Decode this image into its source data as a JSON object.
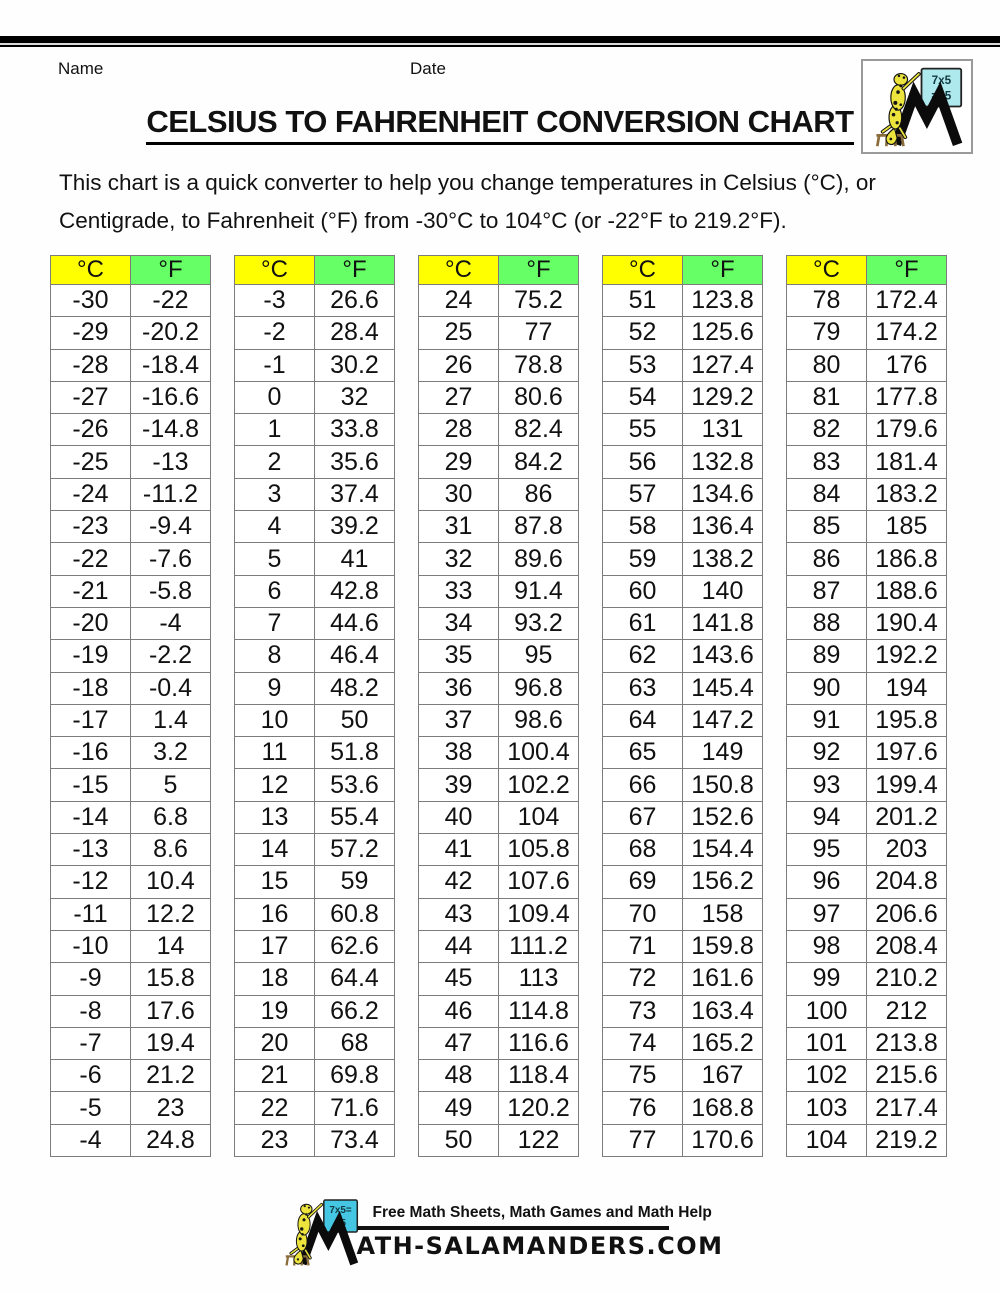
{
  "header": {
    "name_label": "Name",
    "date_label": "Date",
    "title": "CELSIUS TO FAHRENHEIT CONVERSION CHART",
    "intro_line1": "This chart is a quick converter to help you change temperatures in Celsius (°C), or",
    "intro_line2": "Centigrade, to Fahrenheit (°F) from -30°C to 104°C (or -22°F to 219.2°F)."
  },
  "logo": {
    "board_line1": "7x5",
    "board_line2": "=35"
  },
  "colors": {
    "header_yellow": "#ffff00",
    "header_green": "#66ff66",
    "cell_border_gray": "#7c7c7c",
    "logo_board_cyan": "#aee9ee",
    "footer_board_cyan": "#45c7e4",
    "salamander_yellow": "#ece43c"
  },
  "table": {
    "c_header": "°C",
    "f_header": "°F",
    "groups": [
      {
        "rows": [
          [
            "-30",
            "-22"
          ],
          [
            "-29",
            "-20.2"
          ],
          [
            "-28",
            "-18.4"
          ],
          [
            "-27",
            "-16.6"
          ],
          [
            "-26",
            "-14.8"
          ],
          [
            "-25",
            "-13"
          ],
          [
            "-24",
            "-11.2"
          ],
          [
            "-23",
            "-9.4"
          ],
          [
            "-22",
            "-7.6"
          ],
          [
            "-21",
            "-5.8"
          ],
          [
            "-20",
            "-4"
          ],
          [
            "-19",
            "-2.2"
          ],
          [
            "-18",
            "-0.4"
          ],
          [
            "-17",
            "1.4"
          ],
          [
            "-16",
            "3.2"
          ],
          [
            "-15",
            "5"
          ],
          [
            "-14",
            "6.8"
          ],
          [
            "-13",
            "8.6"
          ],
          [
            "-12",
            "10.4"
          ],
          [
            "-11",
            "12.2"
          ],
          [
            "-10",
            "14"
          ],
          [
            "-9",
            "15.8"
          ],
          [
            "-8",
            "17.6"
          ],
          [
            "-7",
            "19.4"
          ],
          [
            "-6",
            "21.2"
          ],
          [
            "-5",
            "23"
          ],
          [
            "-4",
            "24.8"
          ]
        ]
      },
      {
        "rows": [
          [
            "-3",
            "26.6"
          ],
          [
            "-2",
            "28.4"
          ],
          [
            "-1",
            "30.2"
          ],
          [
            "0",
            "32"
          ],
          [
            "1",
            "33.8"
          ],
          [
            "2",
            "35.6"
          ],
          [
            "3",
            "37.4"
          ],
          [
            "4",
            "39.2"
          ],
          [
            "5",
            "41"
          ],
          [
            "6",
            "42.8"
          ],
          [
            "7",
            "44.6"
          ],
          [
            "8",
            "46.4"
          ],
          [
            "9",
            "48.2"
          ],
          [
            "10",
            "50"
          ],
          [
            "11",
            "51.8"
          ],
          [
            "12",
            "53.6"
          ],
          [
            "13",
            "55.4"
          ],
          [
            "14",
            "57.2"
          ],
          [
            "15",
            "59"
          ],
          [
            "16",
            "60.8"
          ],
          [
            "17",
            "62.6"
          ],
          [
            "18",
            "64.4"
          ],
          [
            "19",
            "66.2"
          ],
          [
            "20",
            "68"
          ],
          [
            "21",
            "69.8"
          ],
          [
            "22",
            "71.6"
          ],
          [
            "23",
            "73.4"
          ]
        ]
      },
      {
        "rows": [
          [
            "24",
            "75.2"
          ],
          [
            "25",
            "77"
          ],
          [
            "26",
            "78.8"
          ],
          [
            "27",
            "80.6"
          ],
          [
            "28",
            "82.4"
          ],
          [
            "29",
            "84.2"
          ],
          [
            "30",
            "86"
          ],
          [
            "31",
            "87.8"
          ],
          [
            "32",
            "89.6"
          ],
          [
            "33",
            "91.4"
          ],
          [
            "34",
            "93.2"
          ],
          [
            "35",
            "95"
          ],
          [
            "36",
            "96.8"
          ],
          [
            "37",
            "98.6"
          ],
          [
            "38",
            "100.4"
          ],
          [
            "39",
            "102.2"
          ],
          [
            "40",
            "104"
          ],
          [
            "41",
            "105.8"
          ],
          [
            "42",
            "107.6"
          ],
          [
            "43",
            "109.4"
          ],
          [
            "44",
            "111.2"
          ],
          [
            "45",
            "113"
          ],
          [
            "46",
            "114.8"
          ],
          [
            "47",
            "116.6"
          ],
          [
            "48",
            "118.4"
          ],
          [
            "49",
            "120.2"
          ],
          [
            "50",
            "122"
          ]
        ]
      },
      {
        "rows": [
          [
            "51",
            "123.8"
          ],
          [
            "52",
            "125.6"
          ],
          [
            "53",
            "127.4"
          ],
          [
            "54",
            "129.2"
          ],
          [
            "55",
            "131"
          ],
          [
            "56",
            "132.8"
          ],
          [
            "57",
            "134.6"
          ],
          [
            "58",
            "136.4"
          ],
          [
            "59",
            "138.2"
          ],
          [
            "60",
            "140"
          ],
          [
            "61",
            "141.8"
          ],
          [
            "62",
            "143.6"
          ],
          [
            "63",
            "145.4"
          ],
          [
            "64",
            "147.2"
          ],
          [
            "65",
            "149"
          ],
          [
            "66",
            "150.8"
          ],
          [
            "67",
            "152.6"
          ],
          [
            "68",
            "154.4"
          ],
          [
            "69",
            "156.2"
          ],
          [
            "70",
            "158"
          ],
          [
            "71",
            "159.8"
          ],
          [
            "72",
            "161.6"
          ],
          [
            "73",
            "163.4"
          ],
          [
            "74",
            "165.2"
          ],
          [
            "75",
            "167"
          ],
          [
            "76",
            "168.8"
          ],
          [
            "77",
            "170.6"
          ]
        ]
      },
      {
        "rows": [
          [
            "78",
            "172.4"
          ],
          [
            "79",
            "174.2"
          ],
          [
            "80",
            "176"
          ],
          [
            "81",
            "177.8"
          ],
          [
            "82",
            "179.6"
          ],
          [
            "83",
            "181.4"
          ],
          [
            "84",
            "183.2"
          ],
          [
            "85",
            "185"
          ],
          [
            "86",
            "186.8"
          ],
          [
            "87",
            "188.6"
          ],
          [
            "88",
            "190.4"
          ],
          [
            "89",
            "192.2"
          ],
          [
            "90",
            "194"
          ],
          [
            "91",
            "195.8"
          ],
          [
            "92",
            "197.6"
          ],
          [
            "93",
            "199.4"
          ],
          [
            "94",
            "201.2"
          ],
          [
            "95",
            "203"
          ],
          [
            "96",
            "204.8"
          ],
          [
            "97",
            "206.6"
          ],
          [
            "98",
            "208.4"
          ],
          [
            "99",
            "210.2"
          ],
          [
            "100",
            "212"
          ],
          [
            "101",
            "213.8"
          ],
          [
            "102",
            "215.6"
          ],
          [
            "103",
            "217.4"
          ],
          [
            "104",
            "219.2"
          ]
        ]
      }
    ]
  },
  "footer": {
    "board_line1": "7x5=",
    "board_line2": "35",
    "tagline": "Free Math Sheets, Math Games and Math Help",
    "wordmark": "ATH-SALAMANDERS.COM"
  }
}
